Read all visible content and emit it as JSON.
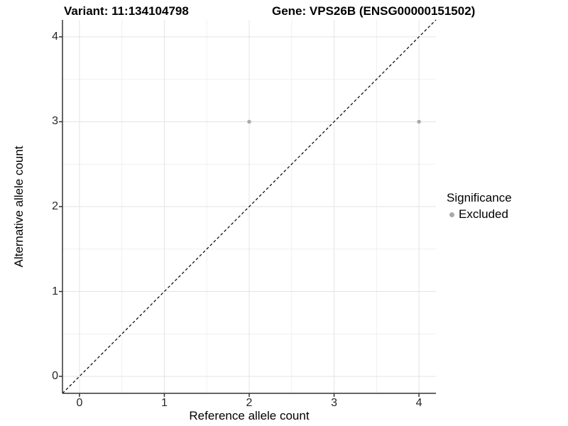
{
  "titles": {
    "left": "Variant: 11:134104798",
    "right": "Gene: VPS26B (ENSG00000151502)"
  },
  "chart_data": {
    "type": "scatter",
    "title_left": "Variant: 11:134104798",
    "title_right": "Gene: VPS26B (ENSG00000151502)",
    "xlabel": "Reference allele count",
    "ylabel": "Alternative allele count",
    "xlim": [
      -0.2,
      4.2
    ],
    "ylim": [
      -0.2,
      4.2
    ],
    "x_ticks": [
      0,
      1,
      2,
      3,
      4
    ],
    "y_ticks": [
      0,
      1,
      2,
      3,
      4
    ],
    "x_minor_gridlines": [
      0.5,
      1.5,
      2.5,
      3.5
    ],
    "y_minor_gridlines": [
      0.5,
      1.5,
      2.5,
      3.5
    ],
    "grid": "major and minor, light gray on white panel",
    "series": [
      {
        "name": "Excluded",
        "color": "#a9a9a9",
        "points": [
          [
            2,
            3
          ],
          [
            4,
            3
          ]
        ]
      }
    ],
    "identity_line": {
      "style": "dashed",
      "color": "#000000",
      "from": [
        -0.2,
        -0.2
      ],
      "to": [
        4.2,
        4.2
      ]
    },
    "legend": {
      "title": "Significance",
      "position": "right",
      "entries": [
        {
          "label": "Excluded",
          "color": "#a9a9a9"
        }
      ]
    }
  },
  "colors": {
    "axis_line": "#333333",
    "grid_major": "#e3e3e3",
    "grid_minor": "#f0f0f0",
    "tick_text": "#262626",
    "background": "#ffffff"
  }
}
